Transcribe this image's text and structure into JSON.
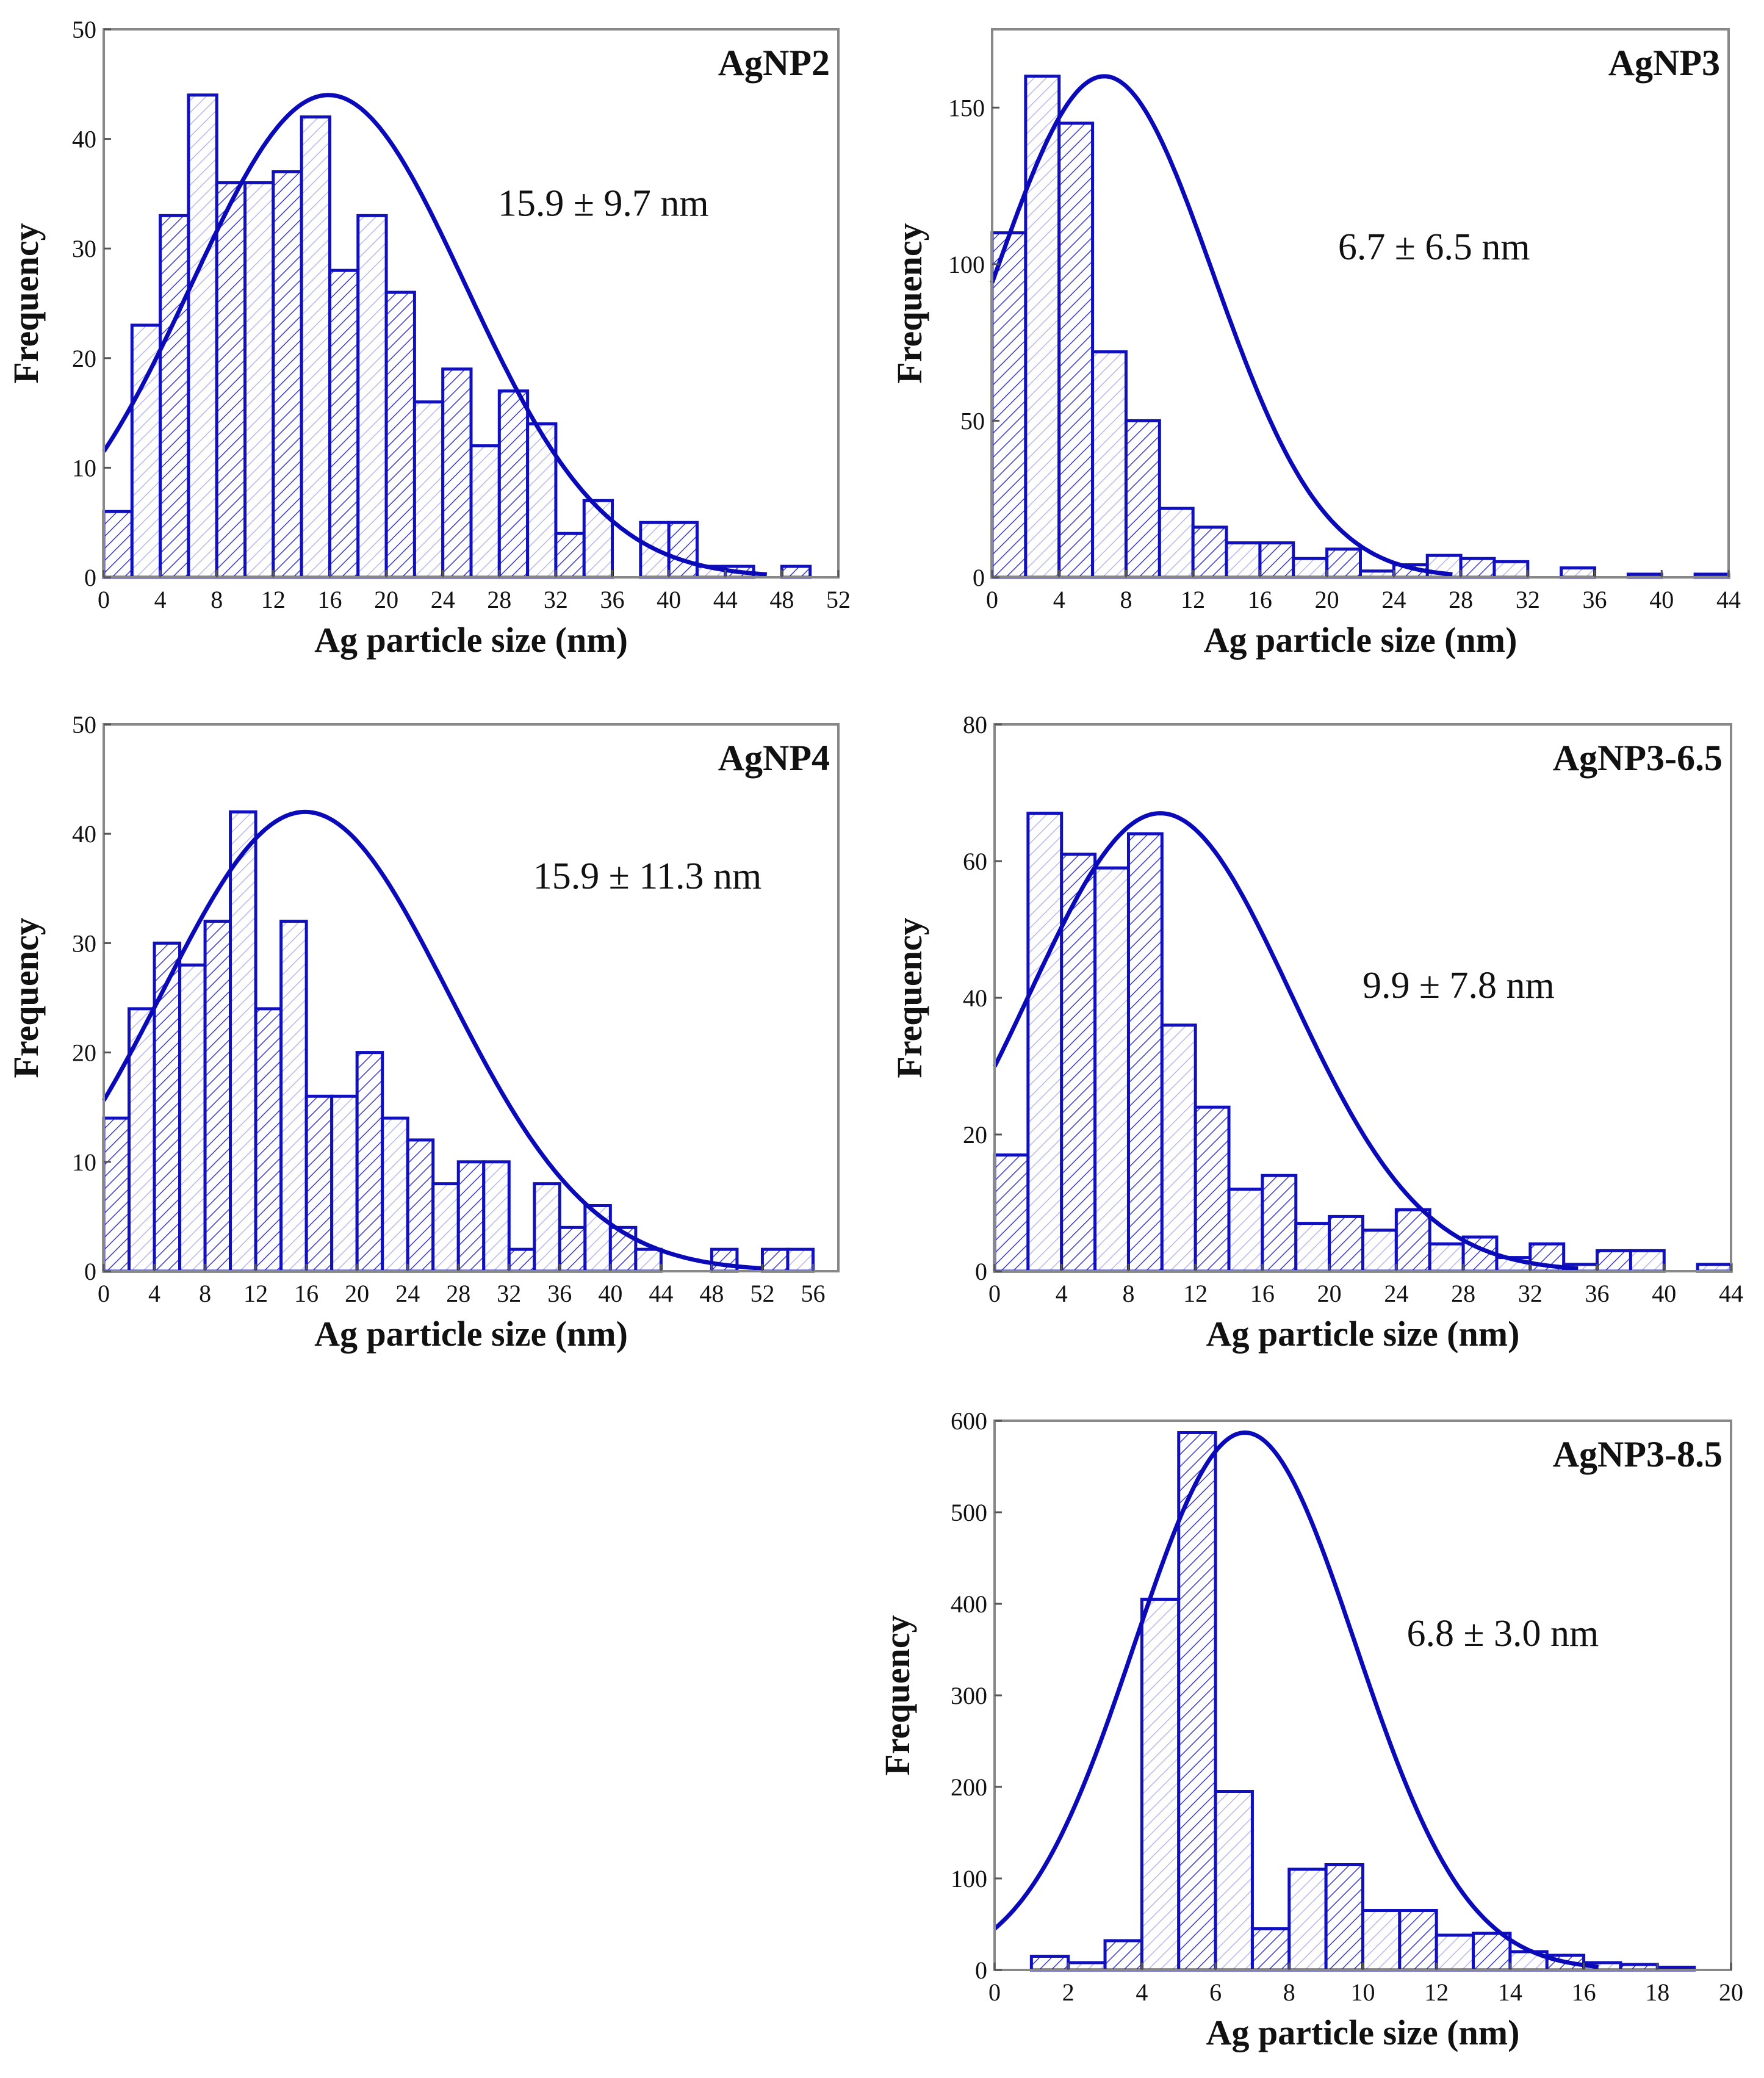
{
  "colors": {
    "bar": "#1010c0",
    "curve": "#0a0ab8",
    "axis": "#888888",
    "hatch_light": "#b8b8ee"
  },
  "chart_data": [
    {
      "type": "bar",
      "title": "AgNP2",
      "annotation": "15.9 ± 9.7 nm",
      "xlabel": "Ag particle size (nm)",
      "ylabel": "Frequency",
      "xlim": [
        0,
        52
      ],
      "ylim": [
        0,
        50
      ],
      "xticks": [
        0,
        4,
        8,
        12,
        16,
        20,
        24,
        28,
        32,
        36,
        40,
        44,
        48,
        52
      ],
      "yticks": [
        0,
        10,
        20,
        30,
        40,
        50
      ],
      "bin_width": 2,
      "bin_start": 0,
      "values": [
        6,
        23,
        33,
        44,
        36,
        36,
        37,
        42,
        28,
        33,
        26,
        16,
        19,
        12,
        17,
        14,
        4,
        7,
        0,
        5,
        5,
        1,
        1,
        0,
        1
      ],
      "fit": {
        "type": "gaussian",
        "mean": 15.9,
        "sd": 9.7,
        "peak": 44
      }
    },
    {
      "type": "bar",
      "title": "AgNP3",
      "annotation": "6.7 ± 6.5 nm",
      "xlabel": "Ag particle size (nm)",
      "ylabel": "Frequency",
      "xlim": [
        0,
        44
      ],
      "ylim": [
        0,
        175
      ],
      "xticks": [
        0,
        4,
        8,
        12,
        16,
        20,
        24,
        28,
        32,
        36,
        40,
        44
      ],
      "yticks": [
        0,
        50,
        100,
        150
      ],
      "bin_width": 2,
      "bin_start": 0,
      "values": [
        110,
        160,
        145,
        72,
        50,
        22,
        16,
        11,
        11,
        6,
        9,
        2,
        4,
        7,
        6,
        5,
        0,
        3,
        0,
        1,
        0,
        1
      ],
      "fit": {
        "type": "gaussian",
        "mean": 6.7,
        "sd": 6.5,
        "peak": 160
      }
    },
    {
      "type": "bar",
      "title": "AgNP4",
      "annotation": "15.9 ± 11.3 nm",
      "xlabel": "Ag particle size (nm)",
      "ylabel": "Frequency",
      "xlim": [
        0,
        58
      ],
      "ylim": [
        0,
        50
      ],
      "xticks": [
        0,
        4,
        8,
        12,
        16,
        20,
        24,
        28,
        32,
        36,
        40,
        44,
        48,
        52,
        56
      ],
      "yticks": [
        0,
        10,
        20,
        30,
        40,
        50
      ],
      "bin_width": 2,
      "bin_start": 0,
      "values": [
        14,
        24,
        30,
        28,
        32,
        42,
        24,
        32,
        16,
        16,
        20,
        14,
        12,
        8,
        10,
        10,
        2,
        8,
        4,
        6,
        4,
        2,
        0,
        0,
        2,
        0,
        2,
        2
      ],
      "fit": {
        "type": "gaussian",
        "mean": 15.9,
        "sd": 11.3,
        "peak": 42
      }
    },
    {
      "type": "bar",
      "title": "AgNP3-6.5",
      "annotation": "9.9 ± 7.8 nm",
      "xlabel": "Ag particle size (nm)",
      "ylabel": "Frequency",
      "xlim": [
        0,
        44
      ],
      "ylim": [
        0,
        80
      ],
      "xticks": [
        0,
        4,
        8,
        12,
        16,
        20,
        24,
        28,
        32,
        36,
        40,
        44
      ],
      "yticks": [
        0,
        20,
        40,
        60,
        80
      ],
      "bin_width": 2,
      "bin_start": 0,
      "values": [
        17,
        67,
        61,
        59,
        64,
        36,
        24,
        12,
        14,
        7,
        8,
        6,
        9,
        4,
        5,
        2,
        4,
        1,
        3,
        3,
        0,
        1
      ],
      "fit": {
        "type": "gaussian",
        "mean": 9.9,
        "sd": 7.8,
        "peak": 67
      }
    },
    {
      "type": "bar",
      "title": "AgNP3-8.5",
      "annotation": "6.8 ± 3.0 nm",
      "xlabel": "Ag particle size (nm)",
      "ylabel": "Frequency",
      "xlim": [
        0,
        20
      ],
      "ylim": [
        0,
        600
      ],
      "xticks": [
        0,
        2,
        4,
        6,
        8,
        10,
        12,
        14,
        16,
        18,
        20
      ],
      "yticks": [
        0,
        100,
        200,
        300,
        400,
        500,
        600
      ],
      "bin_width": 1,
      "bin_start": 1,
      "values": [
        15,
        8,
        32,
        405,
        587,
        195,
        45,
        110,
        115,
        65,
        65,
        38,
        40,
        20,
        16,
        8,
        6,
        3
      ],
      "fit": {
        "type": "gaussian",
        "mean": 6.8,
        "sd": 3.0,
        "peak": 587
      }
    }
  ]
}
